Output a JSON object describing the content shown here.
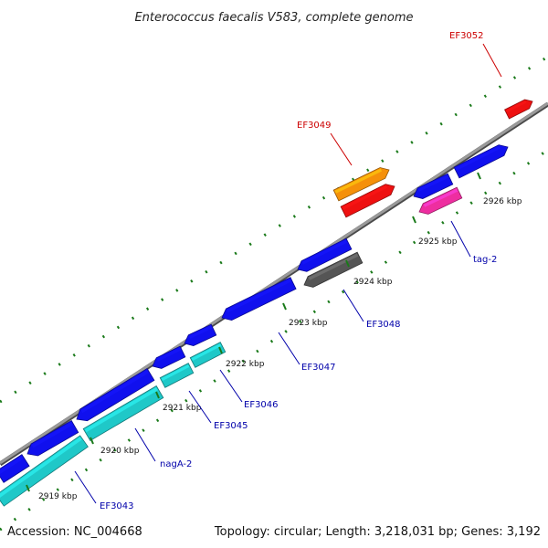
{
  "title": "Enterococcus faecalis V583, complete genome",
  "footer": {
    "accession": "Accession: NC_004668",
    "stats": "Topology: circular; Length: 3,218,031 bp; Genes: 3,192"
  },
  "colors": {
    "backbone": "#8c8c8c",
    "tick": "#1a7a1a",
    "label_forward": "#cc0000",
    "label_reverse": "#0000aa",
    "blue": "#1010ee",
    "cyan": "#1fc8c8",
    "orange": "#f5900a",
    "red": "#ee1010",
    "gray": "#555555",
    "pink": "#ee2ea0"
  },
  "ticks": [
    "2919 kbp",
    "2920 kbp",
    "2921 kbp",
    "2922 kbp",
    "2923 kbp",
    "2924 kbp",
    "2925 kbp",
    "2926 kbp"
  ],
  "labels": [
    {
      "text": "EF3052",
      "strand": "forward"
    },
    {
      "text": "EF3049",
      "strand": "forward"
    },
    {
      "text": "tag-2",
      "strand": "reverse"
    },
    {
      "text": "EF3048",
      "strand": "reverse"
    },
    {
      "text": "EF3047",
      "strand": "reverse"
    },
    {
      "text": "EF3046",
      "strand": "reverse"
    },
    {
      "text": "EF3045",
      "strand": "reverse"
    },
    {
      "text": "nagA-2",
      "strand": "reverse"
    },
    {
      "text": "EF3043",
      "strand": "reverse"
    }
  ]
}
